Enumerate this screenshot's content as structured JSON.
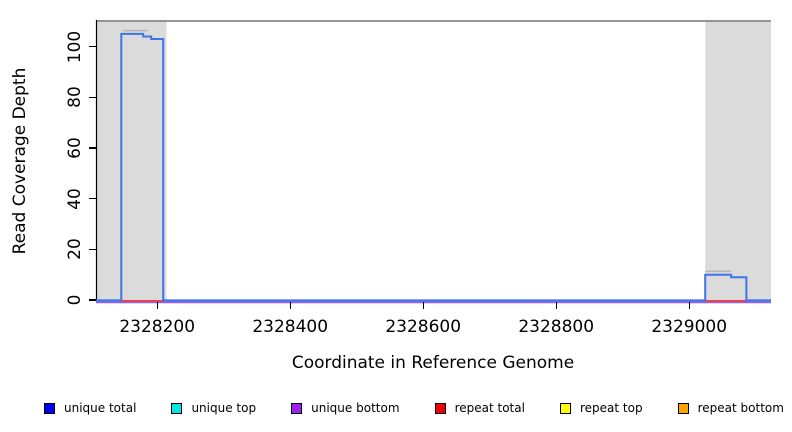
{
  "y_axis": {
    "title": "Read Coverage Depth",
    "tick_labels": [
      "0",
      "20",
      "40",
      "60",
      "80",
      "100"
    ]
  },
  "x_axis": {
    "title": "Coordinate in Reference Genome",
    "tick_labels": [
      "2328200",
      "2328400",
      "2328600",
      "2328800",
      "2329000"
    ]
  },
  "legend": {
    "items": [
      {
        "label": "unique total",
        "color": "#0000EE"
      },
      {
        "label": "unique top",
        "color": "#00E5E5"
      },
      {
        "label": "unique bottom",
        "color": "#A020F0"
      },
      {
        "label": "repeat total",
        "color": "#EE0000"
      },
      {
        "label": "repeat top",
        "color": "#FFFF00"
      },
      {
        "label": "repeat bottom",
        "color": "#FFA500"
      }
    ]
  },
  "colors": {
    "shaded_region": "#DBDBDB",
    "top_rule": "#8A8A8A",
    "axis": "#000000",
    "aux_gray": "#B4B4B4"
  },
  "chart_data": {
    "type": "line",
    "subtype": "step-coverage",
    "title": "",
    "xlabel": "Coordinate in Reference Genome",
    "ylabel": "Read Coverage Depth",
    "xlim": [
      2328108,
      2329123
    ],
    "ylim": [
      0,
      110.5
    ],
    "x_ticks": [
      2328200,
      2328400,
      2328600,
      2328800,
      2329000
    ],
    "y_ticks": [
      0,
      20,
      40,
      60,
      80,
      100
    ],
    "grid": false,
    "legend_position": "bottom",
    "top_rule_y": 110.5,
    "shaded_regions": [
      {
        "x1": 2328108,
        "x2": 2328214
      },
      {
        "x1": 2329024,
        "x2": 2329123
      }
    ],
    "aux_segments": [
      {
        "x1": 2328149,
        "x2": 2328186,
        "y": 106.3
      },
      {
        "x1": 2329024,
        "x2": 2329063,
        "y": 11.3
      }
    ],
    "series": [
      {
        "name": "unique total",
        "color": "#3D74E8",
        "points": [
          [
            2328108,
            0
          ],
          [
            2328146,
            0
          ],
          [
            2328146,
            105
          ],
          [
            2328179,
            105
          ],
          [
            2328179,
            104
          ],
          [
            2328191,
            104
          ],
          [
            2328191,
            103
          ],
          [
            2328209,
            103
          ],
          [
            2328209,
            0
          ],
          [
            2329024,
            0
          ],
          [
            2329024,
            10
          ],
          [
            2329063,
            10
          ],
          [
            2329063,
            9
          ],
          [
            2329086,
            9
          ],
          [
            2329086,
            0
          ],
          [
            2329123,
            0
          ]
        ]
      },
      {
        "name": "unique top",
        "color": "#00E5E5",
        "occluded": true,
        "points": [
          [
            2328108,
            0
          ],
          [
            2329123,
            0
          ]
        ]
      },
      {
        "name": "unique bottom",
        "color": "#9460E8",
        "points": [
          [
            2328108,
            0
          ],
          [
            2329123,
            0
          ]
        ]
      },
      {
        "name": "repeat total",
        "color": "#F03C3C",
        "points": [
          [
            2328108,
            0
          ],
          [
            2329123,
            0
          ]
        ]
      },
      {
        "name": "repeat top",
        "color": "#FFFF00",
        "occluded": true,
        "points": [
          [
            2328108,
            0
          ],
          [
            2329123,
            0
          ]
        ]
      },
      {
        "name": "repeat bottom",
        "color": "#FFA500",
        "occluded": true,
        "points": [
          [
            2328108,
            0
          ],
          [
            2329123,
            0
          ]
        ]
      }
    ]
  }
}
